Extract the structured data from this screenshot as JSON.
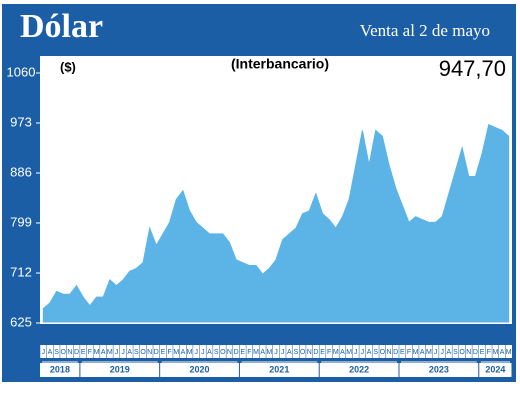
{
  "chart_data": {
    "type": "area",
    "title": "Dólar",
    "subtitle": "Venta al 2 de mayo",
    "ylabel": "($)",
    "note": "(Interbancario)",
    "annotation": "947,70",
    "color": "#5bb4e5",
    "categories": [
      "J",
      "A",
      "S",
      "O",
      "N",
      "D",
      "E",
      "F",
      "M",
      "A",
      "M",
      "J",
      "J",
      "A",
      "S",
      "O",
      "N",
      "D",
      "E",
      "F",
      "M",
      "A",
      "M",
      "J",
      "J",
      "A",
      "S",
      "O",
      "N",
      "D",
      "E",
      "F",
      "M",
      "A",
      "M",
      "J",
      "J",
      "A",
      "S",
      "O",
      "N",
      "D",
      "E",
      "F",
      "M",
      "A",
      "M",
      "J",
      "J",
      "A",
      "S",
      "O",
      "N",
      "D",
      "E",
      "F",
      "M",
      "A",
      "M",
      "J",
      "J",
      "A",
      "S",
      "O",
      "N",
      "D",
      "E",
      "F",
      "M",
      "A",
      "M"
    ],
    "years": [
      "2018",
      "2019",
      "2020",
      "2021",
      "2022",
      "2023",
      "2024"
    ],
    "values": [
      650,
      660,
      680,
      675,
      675,
      690,
      670,
      655,
      670,
      670,
      700,
      690,
      700,
      715,
      720,
      730,
      790,
      760,
      780,
      800,
      840,
      855,
      820,
      800,
      790,
      780,
      780,
      780,
      765,
      735,
      730,
      725,
      725,
      710,
      720,
      735,
      770,
      780,
      790,
      815,
      820,
      850,
      815,
      805,
      790,
      810,
      840,
      900,
      960,
      900,
      960,
      950,
      900,
      860,
      830,
      800,
      810,
      805,
      800,
      800,
      810,
      850,
      890,
      930,
      880,
      880,
      920,
      970,
      965,
      960,
      950
    ],
    "ylim": [
      625,
      1060
    ],
    "yticks": [
      625,
      712,
      799,
      886,
      973,
      1060
    ]
  }
}
